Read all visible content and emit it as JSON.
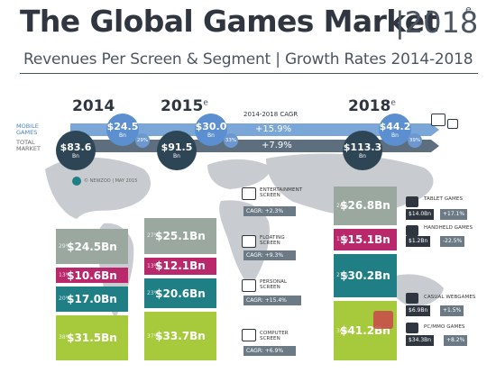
{
  "header": {
    "title": "The Global Games Market",
    "title_year": "|2018",
    "title_sup": "e",
    "subtitle": "Revenues Per Screen & Segment | Growth Rates 2014-2018"
  },
  "years": [
    {
      "label": "2014",
      "sup": ""
    },
    {
      "label": "2015",
      "sup": "e"
    },
    {
      "label": "2018",
      "sup": "e"
    }
  ],
  "bands": {
    "mobile_label_1": "MOBILE",
    "mobile_label_2": "GAMES",
    "total_label_1": "TOTAL",
    "total_label_2": "MARKET",
    "cagr_title": "2014-2018 CAGR",
    "mobile_cagr": "+15.9%",
    "total_cagr": "+7.9%"
  },
  "summary": {
    "unit": "Bn",
    "totals": [
      "$83.6",
      "$91.5",
      "$113.3"
    ],
    "mobile": [
      "$24.5",
      "$30.0",
      "$44.2"
    ],
    "mobile_share": [
      "29%",
      "33%",
      "39%"
    ]
  },
  "source": "© NEWZOO | MAY 2015",
  "screens": [
    {
      "name_1": "ENTERTAINMENT",
      "name_2": "SCREEN",
      "cagr": "CAGR: +2.3%"
    },
    {
      "name_1": "FLOATING",
      "name_2": "SCREEN",
      "cagr": "CAGR: +9.3%"
    },
    {
      "name_1": "PERSONAL",
      "name_2": "SCREEN",
      "cagr": "CAGR: +15.4%"
    },
    {
      "name_1": "COMPUTER",
      "name_2": "SCREEN",
      "cagr": "CAGR: +6.9%"
    }
  ],
  "segments_right": [
    {
      "name": "TABLET GAMES",
      "value": "$14.0Bn",
      "cagr": "+17.1%"
    },
    {
      "name": "HANDHELD GAMES",
      "value": "$1.2Bn",
      "cagr": "-22.5%"
    },
    {
      "name": "CASUAL WEBGAMES",
      "value": "$6.9Bn",
      "cagr": "+1.5%"
    },
    {
      "name": "PC/MMO GAMES",
      "value": "$34.3Bn",
      "cagr": "+8.2%"
    }
  ],
  "colors": {
    "entertainment": "#9aa8a0",
    "floating": "#b8286a",
    "personal": "#1f7f84",
    "computer": "#a7c93c",
    "mobile_band": "#7aa7d8",
    "total_band": "#5d6e7e",
    "total_circle": "#2e4556",
    "mobile_circle": "#5b8fd0",
    "map": "#c8ccd0"
  },
  "chart_data": {
    "type": "bar",
    "categories": [
      "2014",
      "2015e",
      "2018e"
    ],
    "series": [
      {
        "name": "ENTERTAINMENT SCREEN",
        "values": [
          24.5,
          25.1,
          26.8
        ],
        "shares": [
          "29%",
          "27%",
          "24%"
        ]
      },
      {
        "name": "FLOATING SCREEN",
        "values": [
          10.6,
          12.1,
          15.1
        ],
        "shares": [
          "13%",
          "13%",
          "13%"
        ]
      },
      {
        "name": "PERSONAL SCREEN",
        "values": [
          17.0,
          20.6,
          30.2
        ],
        "shares": [
          "20%",
          "23%",
          "27%"
        ]
      },
      {
        "name": "COMPUTER SCREEN",
        "values": [
          31.5,
          33.7,
          41.2
        ],
        "shares": [
          "38%",
          "37%",
          "36%"
        ]
      }
    ],
    "value_labels": [
      [
        "$24.5Bn",
        "$25.1Bn",
        "$26.8Bn"
      ],
      [
        "$10.6Bn",
        "$12.1Bn",
        "$15.1Bn"
      ],
      [
        "$17.0Bn",
        "$20.6Bn",
        "$30.2Bn"
      ],
      [
        "$31.5Bn",
        "$33.7Bn",
        "$41.2Bn"
      ]
    ],
    "stacked": true,
    "title": "The Global Games Market",
    "ylabel": "",
    "xlabel": ""
  }
}
